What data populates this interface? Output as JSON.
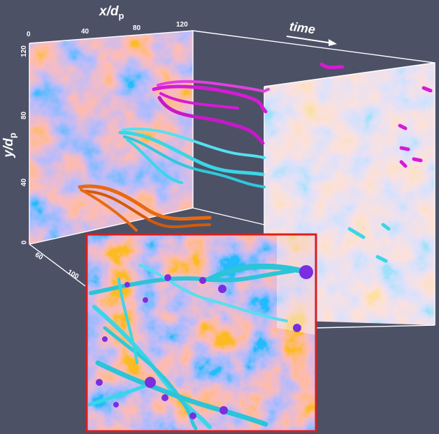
{
  "axes": {
    "x": {
      "title": "x/d",
      "subscript": "p",
      "ticks": [
        "0",
        "40",
        "80",
        "120"
      ]
    },
    "y": {
      "title": "y/d",
      "subscript": "p",
      "ticks": [
        "120",
        "80",
        "40",
        "0"
      ]
    },
    "depth_ticks": [
      "60",
      "100"
    ],
    "time_label": "time"
  },
  "colors": {
    "background": "#4d5166",
    "magenta": "#d61ad6",
    "cyan": "#3ad6e6",
    "orange": "#e86a10",
    "inset_border": "#d81e1e",
    "inset_node": "#7a2ee0",
    "field_red": "#e0664d",
    "field_blue": "#5a6fd6"
  },
  "icons": [
    "time-arrow-icon"
  ]
}
